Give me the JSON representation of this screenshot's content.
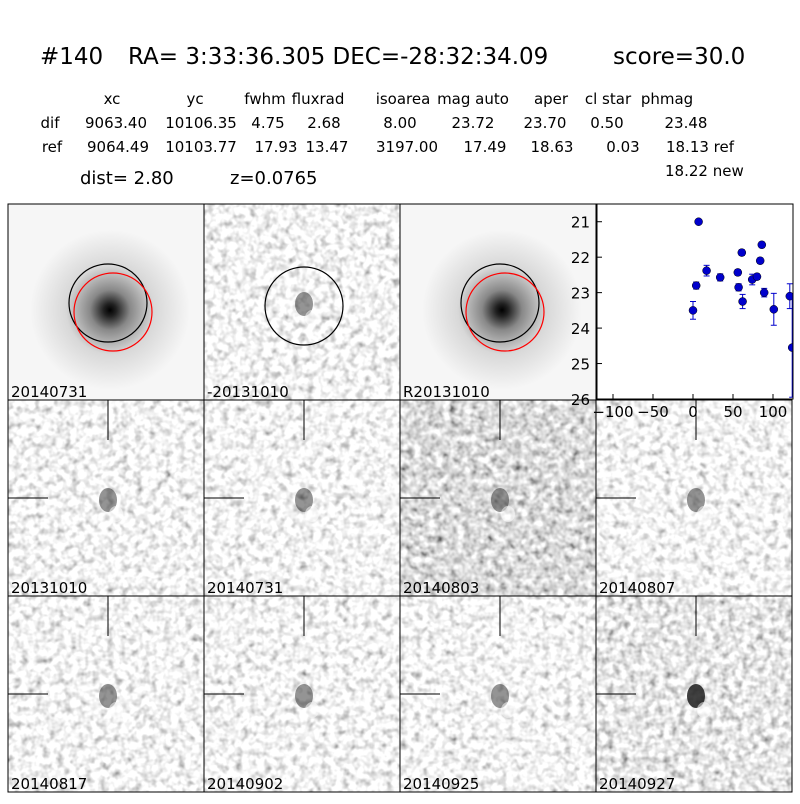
{
  "header": {
    "id": "#140",
    "coords": "RA= 3:33:36.305 DEC=-28:32:34.09",
    "score": "score=30.0"
  },
  "table": {
    "columns": [
      "xc",
      "yc",
      "fwhm",
      "fluxrad",
      "isoarea",
      "mag auto",
      "aper",
      "cl star",
      "phmag"
    ],
    "rows": [
      [
        "dif",
        "9063.40",
        "10106.35",
        "4.75",
        "2.68",
        "8.00",
        "23.72",
        "23.70",
        "0.50",
        "23.48"
      ],
      [
        "ref",
        "9064.49",
        "10103.77",
        "17.93",
        "13.47",
        "3197.00",
        "17.49",
        "18.63",
        "0.03",
        "18.13 ref"
      ]
    ],
    "extra": "18.22 new"
  },
  "dist": "dist=  2.80",
  "z": "z=0.0765",
  "panels": [
    {
      "label": "20140731"
    },
    {
      "label": "-20131010"
    },
    {
      "label": "R20131010"
    },
    {
      "label": "20131010"
    },
    {
      "label": "20140731",
      "color": "#ff0000"
    },
    {
      "label": "20140803"
    },
    {
      "label": "20140807"
    },
    {
      "label": "20140817"
    },
    {
      "label": "20140902"
    },
    {
      "label": "20140925"
    },
    {
      "label": "20140927"
    }
  ],
  "chart_data": {
    "type": "scatter",
    "color": "#0000cc",
    "x": [
      0,
      4,
      7,
      17,
      34,
      56,
      57,
      61,
      62,
      74,
      80,
      84,
      86,
      89,
      101,
      121,
      124
    ],
    "values": [
      23.5,
      22.8,
      21.0,
      22.38,
      22.57,
      22.43,
      22.85,
      21.87,
      23.25,
      22.63,
      22.55,
      22.1,
      21.65,
      23.0,
      23.47,
      23.1,
      24.55
    ],
    "errors": [
      0.25,
      0.1,
      0.05,
      0.15,
      0.1,
      0.08,
      0.1,
      0.08,
      0.2,
      0.15,
      0.08,
      0.08,
      0.08,
      0.12,
      0.45,
      0.35,
      1.4
    ],
    "xlim": [
      -120,
      125
    ],
    "ylim": [
      26,
      20.5
    ],
    "xticks": [
      {
        "value": -100,
        "label": "−100"
      },
      {
        "value": -50,
        "label": "−50"
      },
      0,
      50,
      100
    ],
    "yticks": [
      21,
      22,
      23,
      24,
      25,
      26
    ]
  }
}
